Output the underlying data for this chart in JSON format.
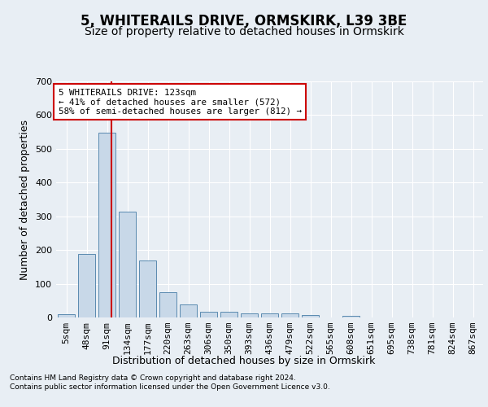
{
  "title": "5, WHITERAILS DRIVE, ORMSKIRK, L39 3BE",
  "subtitle": "Size of property relative to detached houses in Ormskirk",
  "xlabel": "Distribution of detached houses by size in Ormskirk",
  "ylabel": "Number of detached properties",
  "footnote1": "Contains HM Land Registry data © Crown copyright and database right 2024.",
  "footnote2": "Contains public sector information licensed under the Open Government Licence v3.0.",
  "categories": [
    "5sqm",
    "48sqm",
    "91sqm",
    "134sqm",
    "177sqm",
    "220sqm",
    "263sqm",
    "306sqm",
    "350sqm",
    "393sqm",
    "436sqm",
    "479sqm",
    "522sqm",
    "565sqm",
    "608sqm",
    "651sqm",
    "695sqm",
    "738sqm",
    "781sqm",
    "824sqm",
    "867sqm"
  ],
  "values": [
    10,
    188,
    548,
    315,
    168,
    75,
    38,
    18,
    17,
    12,
    13,
    13,
    8,
    0,
    5,
    0,
    0,
    0,
    0,
    0,
    0
  ],
  "bar_color": "#c8d8e8",
  "bar_edge_color": "#5a8ab0",
  "annotation_text": "5 WHITERAILS DRIVE: 123sqm\n← 41% of detached houses are smaller (572)\n58% of semi-detached houses are larger (812) →",
  "annotation_box_color": "#ffffff",
  "annotation_box_edge": "#cc0000",
  "vline_color": "#cc0000",
  "ylim": [
    0,
    700
  ],
  "yticks": [
    0,
    100,
    200,
    300,
    400,
    500,
    600,
    700
  ],
  "bg_color": "#e8eef4",
  "plot_bg_color": "#e8eef4",
  "grid_color": "#ffffff",
  "title_fontsize": 12,
  "subtitle_fontsize": 10,
  "axis_label_fontsize": 9,
  "tick_fontsize": 8,
  "ylabel_fontsize": 9
}
